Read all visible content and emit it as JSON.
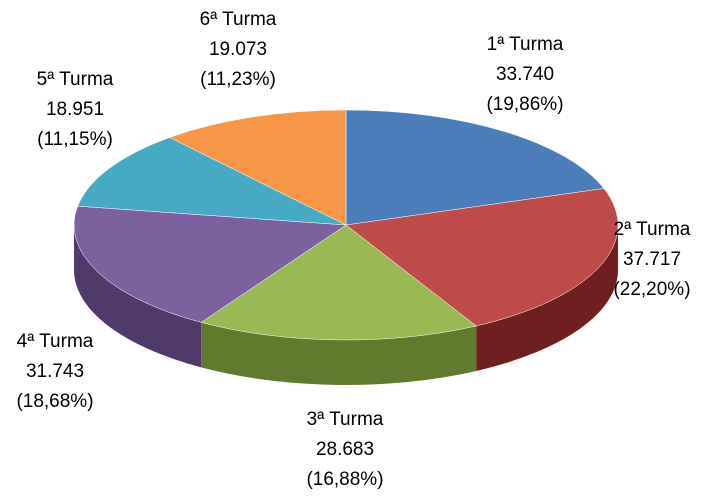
{
  "chart_data": {
    "type": "pie",
    "three_d": true,
    "categories": [
      "1ª Turma",
      "2ª Turma",
      "3ª Turma",
      "4ª Turma",
      "5ª Turma",
      "6ª Turma"
    ],
    "values": [
      33740,
      37717,
      28683,
      31743,
      18951,
      19073
    ],
    "value_labels": [
      "33.740",
      "37.717",
      "28.683",
      "31.743",
      "18.951",
      "19.073"
    ],
    "percents": [
      19.86,
      22.2,
      16.88,
      18.68,
      11.15,
      11.23
    ],
    "percent_labels": [
      "(19,86%)",
      "(22,20%)",
      "(16,88%)",
      "(18,68%)",
      "(11,15%)",
      "(11,23%)"
    ],
    "colors": [
      "#4a7ebb",
      "#be4b48",
      "#98b954",
      "#7d60a0",
      "#46aac5",
      "#f79646"
    ],
    "side_colors": [
      "#2f5688",
      "#6e1f1e",
      "#607a2e",
      "#4f3a6b",
      "#2b7a90",
      "#b7621f"
    ]
  }
}
